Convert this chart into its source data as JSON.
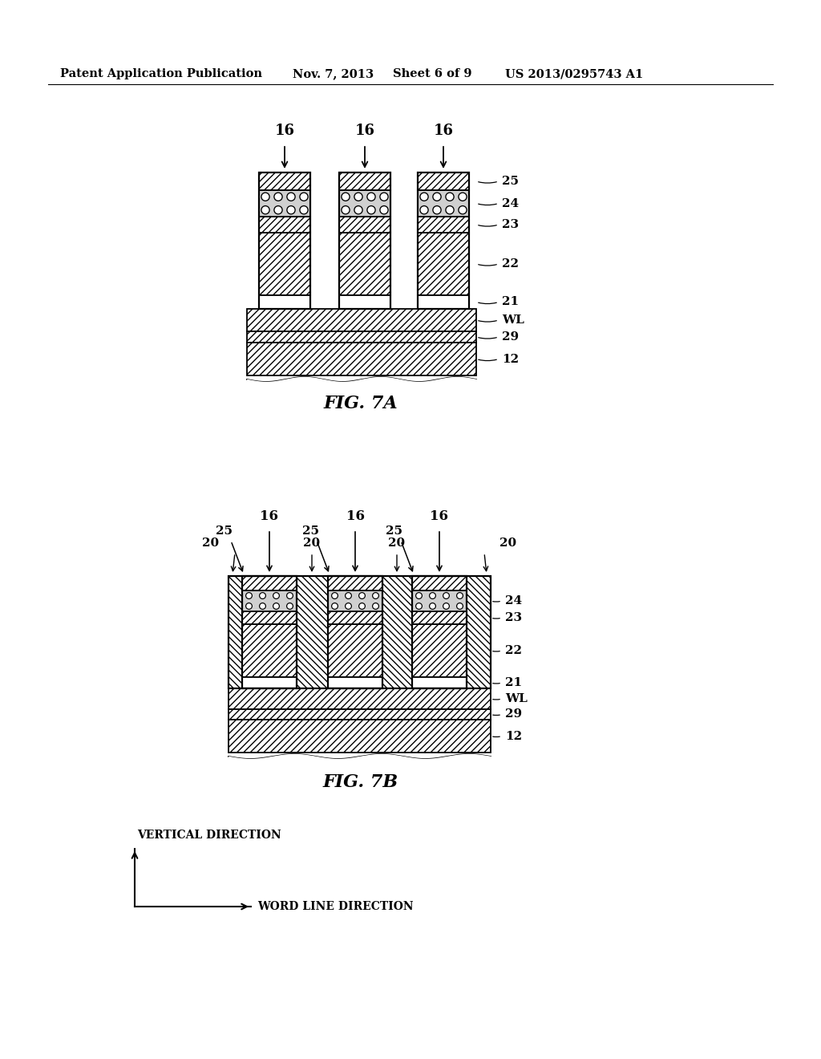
{
  "background_color": "#ffffff",
  "header_text": "Patent Application Publication",
  "header_date": "Nov. 7, 2013",
  "header_sheet": "Sheet 6 of 9",
  "header_patent": "US 2013/0295743 A1",
  "fig7a_label": "FIG. 7A",
  "fig7b_label": "FIG. 7B",
  "axis_label_vertical": "VERTICAL DIRECTION",
  "axis_label_horizontal": "WORD LINE DIRECTION",
  "layer_labels_7a": [
    "25",
    "24",
    "23",
    "22",
    "21",
    "WL",
    "29",
    "12"
  ],
  "layer_labels_7b": [
    "24",
    "23",
    "22",
    "21",
    "WL",
    "29",
    "12"
  ]
}
